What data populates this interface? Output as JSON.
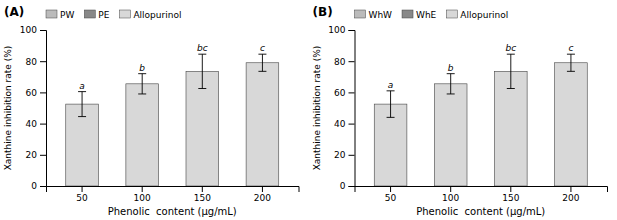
{
  "chart_data": [
    {
      "type": "bar",
      "title": "(A)",
      "categories": [
        "50",
        "100",
        "150",
        "200"
      ],
      "series": [
        {
          "name": "PW",
          "color": "#bbbbbb",
          "values": [
            null,
            null,
            null,
            null
          ]
        },
        {
          "name": "PE",
          "color": "#888888",
          "values": [
            null,
            null,
            null,
            null
          ]
        },
        {
          "name": "Allopurinol",
          "color": "#d8d8d8",
          "values": [
            52.5,
            65.5,
            73.5,
            79.0
          ],
          "errors": [
            8.0,
            6.5,
            11.0,
            5.5
          ],
          "annotations": [
            "a",
            "b",
            "bc",
            "c"
          ]
        }
      ],
      "x_label": "Phenolic  content (μg/mL)",
      "y_label": "Xanthine inhibition rate (%)",
      "ylim": [
        0,
        100
      ],
      "yticks": [
        0,
        20,
        40,
        60,
        80,
        100
      ],
      "grid": false,
      "legend": "upper left"
    },
    {
      "type": "bar",
      "title": "(B)",
      "categories": [
        "50",
        "100",
        "150",
        "200"
      ],
      "series": [
        {
          "name": "WhW",
          "color": "#bbbbbb",
          "values": [
            null,
            null,
            null,
            null
          ]
        },
        {
          "name": "WhE",
          "color": "#888888",
          "values": [
            null,
            null,
            null,
            null
          ]
        },
        {
          "name": "Allopurinol",
          "color": "#d8d8d8",
          "values": [
            52.5,
            65.5,
            73.5,
            79.0
          ],
          "errors": [
            8.5,
            6.5,
            11.0,
            5.5
          ],
          "annotations": [
            "a",
            "b",
            "bc",
            "c"
          ]
        }
      ],
      "x_label": "Phenolic  content (μg/mL)",
      "y_label": "Xanthine inhibition rate (%)",
      "ylim": [
        0,
        100
      ],
      "yticks": [
        0,
        20,
        40,
        60,
        80,
        100
      ],
      "grid": false,
      "legend": "upper left"
    }
  ]
}
